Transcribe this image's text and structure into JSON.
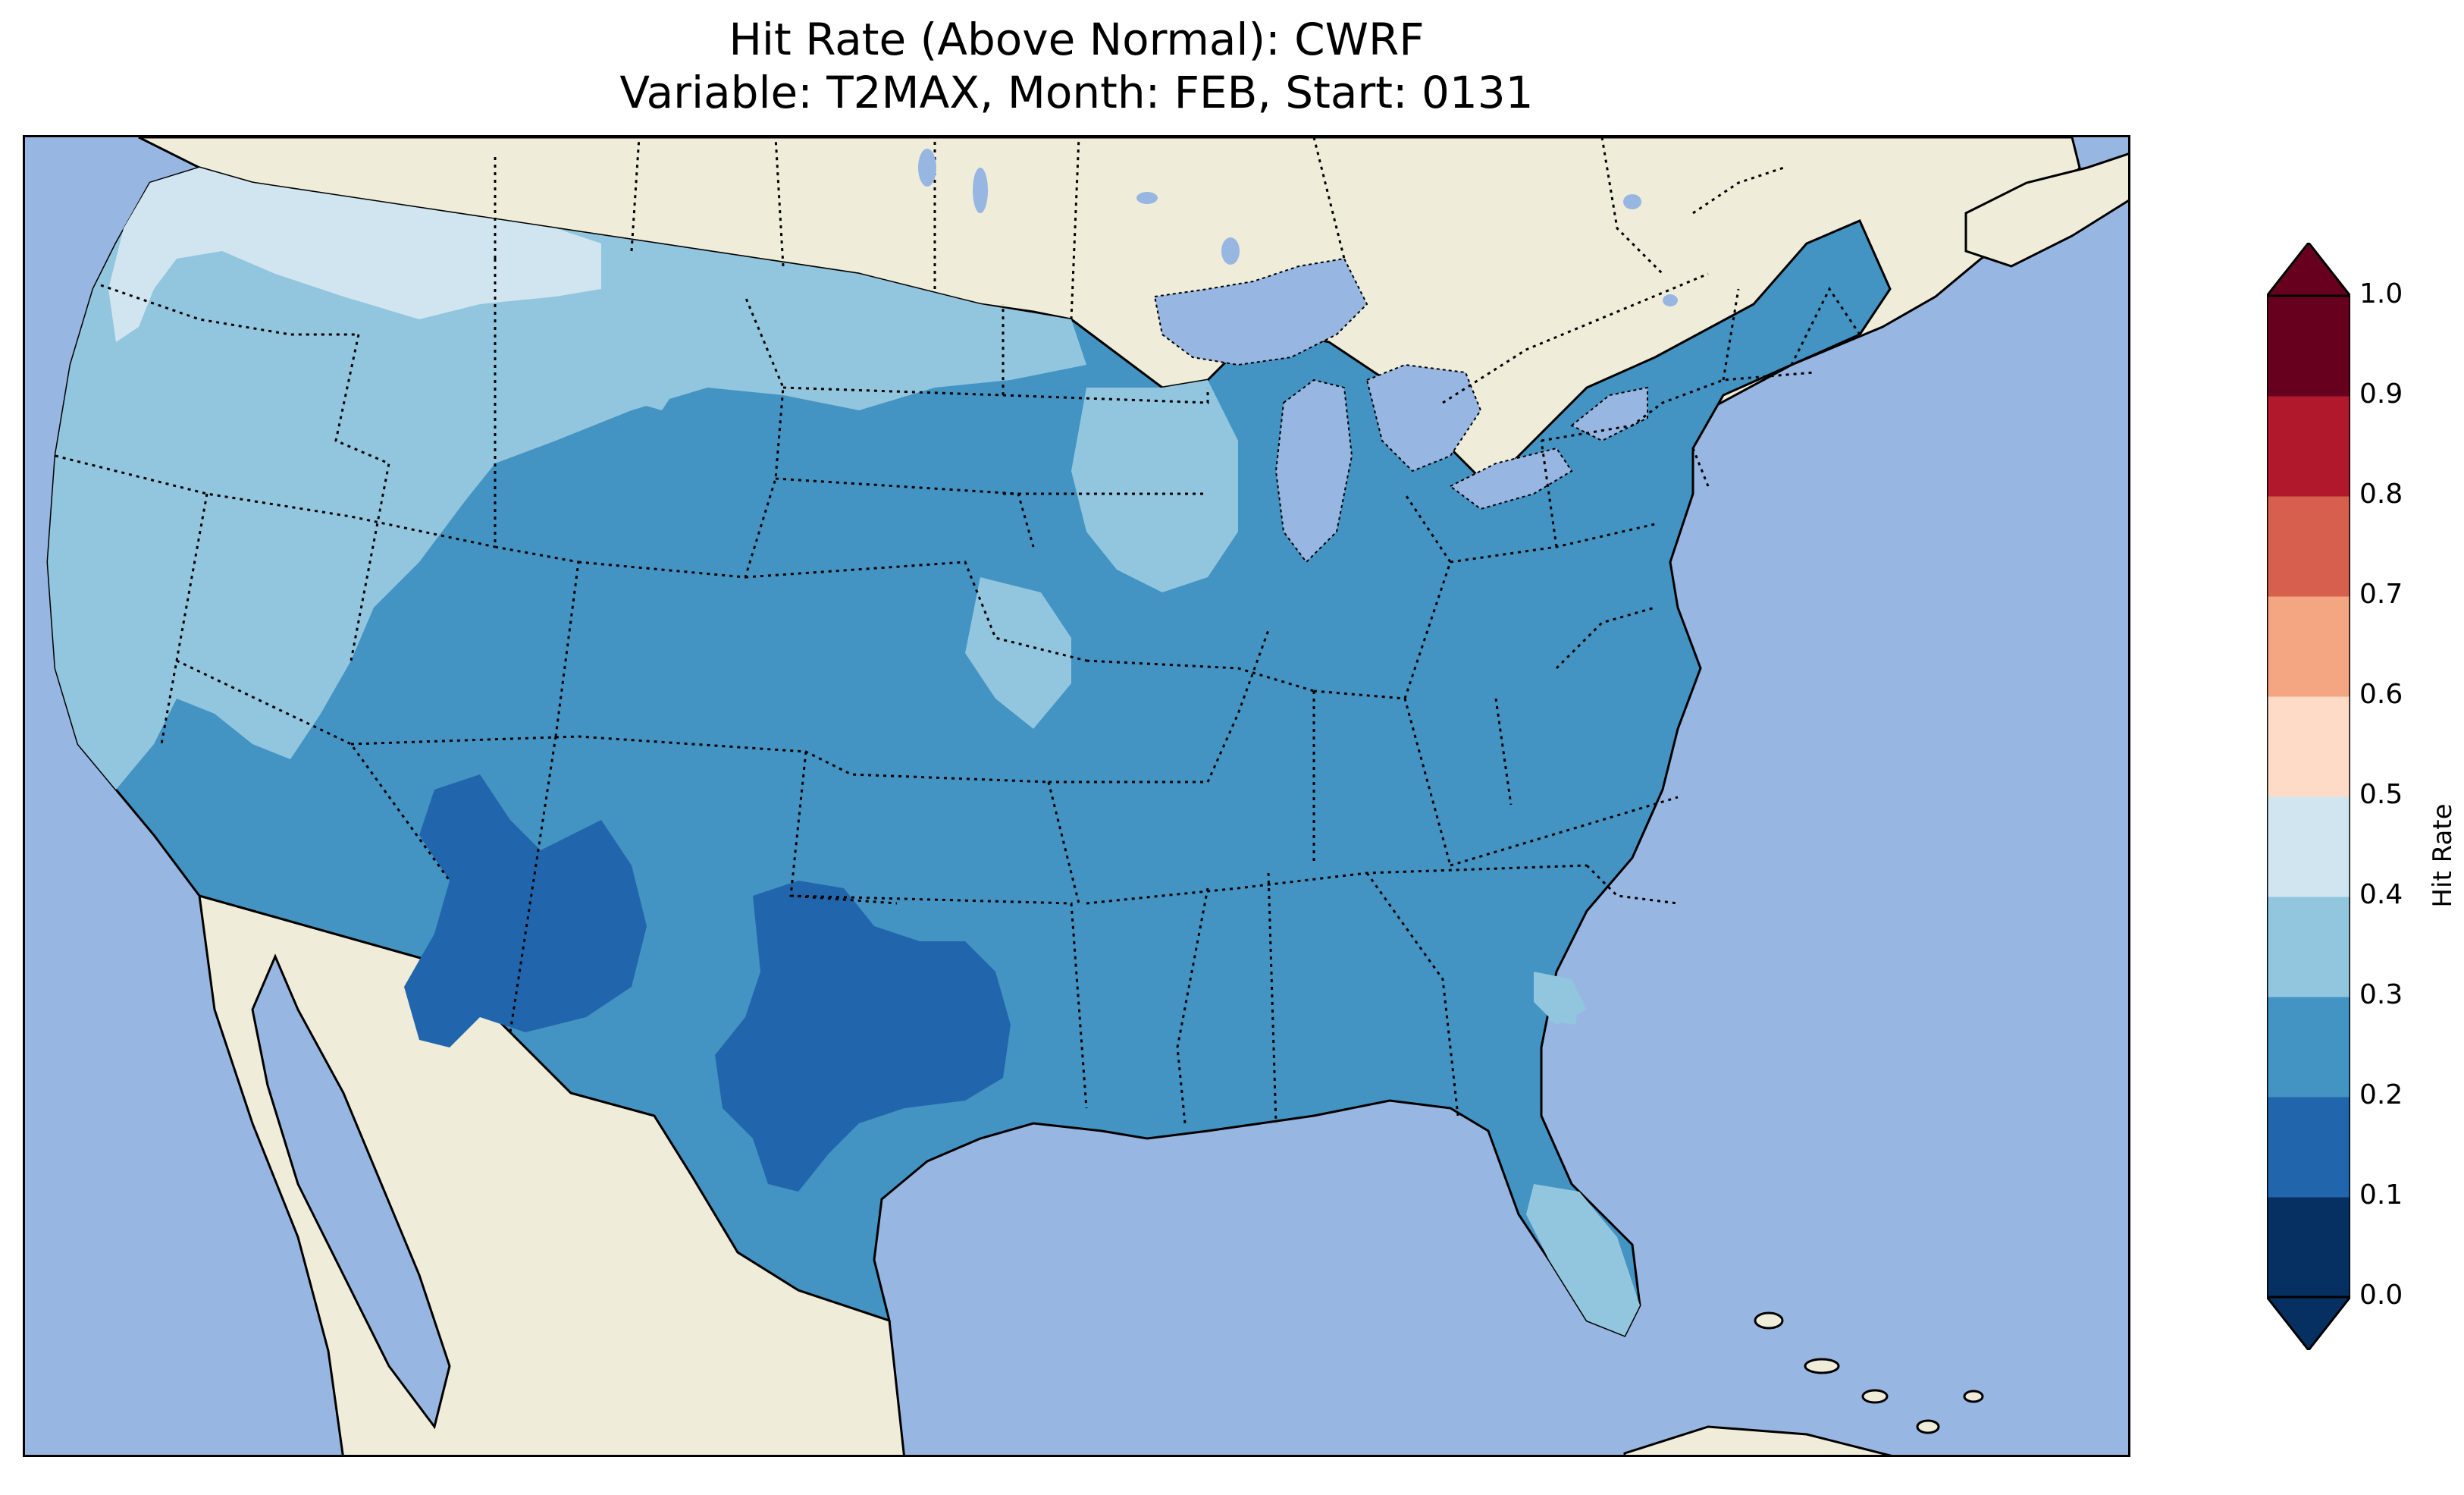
{
  "title": {
    "line1": "Hit Rate (Above Normal): CWRF",
    "line2": "Variable: T2MAX, Month: FEB, Start: 0131"
  },
  "map": {
    "region": "contiguous United States",
    "ocean_color": "#97b6e1",
    "land_color": "#efedd9",
    "lakes_color": "#97b6e1",
    "state_borders": "dotted",
    "coastlines": "solid",
    "field": "Hit Rate",
    "dominant_class": "0.2-0.3",
    "low_areas_0.1_0.2": [
      "southeastern Arizona / southwestern New Mexico",
      "central and west Texas"
    ],
    "higher_areas_0.3_0.4": [
      "Pacific Northwest",
      "northern Rockies",
      "Upper Midwest",
      "California coast",
      "Florida peninsula"
    ],
    "highest_areas_0.4_0.5": [
      "northern Washington / northern Idaho"
    ]
  },
  "colorbar": {
    "label": "Hit Rate",
    "ticks": [
      "0.0",
      "0.1",
      "0.2",
      "0.3",
      "0.4",
      "0.5",
      "0.6",
      "0.7",
      "0.8",
      "0.9",
      "1.0"
    ],
    "colors": [
      "#053061",
      "#2166ac",
      "#4393c3",
      "#92c5de",
      "#d1e5f0",
      "#fddbc7",
      "#f4a582",
      "#d6604d",
      "#b2182b",
      "#67001f"
    ],
    "extend": "both"
  }
}
